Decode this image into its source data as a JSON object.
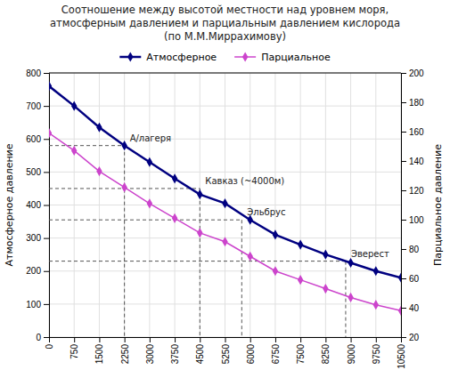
{
  "chart_data": {
    "type": "line",
    "title": [
      "Соотношение между высотой местности над уровнем моря,",
      "атмосферным давлением и парциальным давлением кислорода",
      "(по М.М.Миррахимову)"
    ],
    "y_label": "Атмосферное давление",
    "y2_label": "Парциальное давление",
    "x": [
      0,
      750,
      1500,
      2250,
      3000,
      3750,
      4500,
      5250,
      6000,
      6750,
      7500,
      8250,
      9000,
      9750,
      10500
    ],
    "series": [
      {
        "name": "Атмосферное",
        "color": "#000080",
        "marker": "diamond",
        "values": [
          760,
          700,
          635,
          580,
          530,
          480,
          432,
          405,
          355,
          310,
          280,
          250,
          225,
          200,
          180
        ]
      },
      {
        "name": "Парциальное",
        "color": "#cc44cc",
        "marker": "diamond",
        "axis": "y2",
        "values": [
          159,
          147,
          133,
          122,
          111,
          101,
          91,
          85,
          75,
          65,
          59,
          53,
          47,
          42,
          38
        ]
      }
    ],
    "xlim": [
      0,
      10500
    ],
    "xticks": [
      0,
      750,
      1500,
      2250,
      3000,
      3750,
      4500,
      5250,
      6000,
      6750,
      7500,
      8250,
      9000,
      9750,
      10500
    ],
    "ylim": [
      0,
      800
    ],
    "yticks": [
      0,
      100,
      200,
      300,
      400,
      500,
      600,
      700,
      800
    ],
    "y2lim": [
      20,
      200
    ],
    "y2ticks": [
      20,
      40,
      60,
      80,
      100,
      120,
      140,
      160,
      180,
      200
    ],
    "annotations": [
      {
        "text": "А/лагеря",
        "x": 2250,
        "y": 580
      },
      {
        "text": "Кавказ (~4000м)",
        "x": 4500,
        "y": 450
      },
      {
        "text": "Эльбрус",
        "x": 5750,
        "y": 355
      },
      {
        "text": "Эверест",
        "x": 8850,
        "y": 230
      }
    ],
    "grid": true,
    "legend": "top"
  }
}
